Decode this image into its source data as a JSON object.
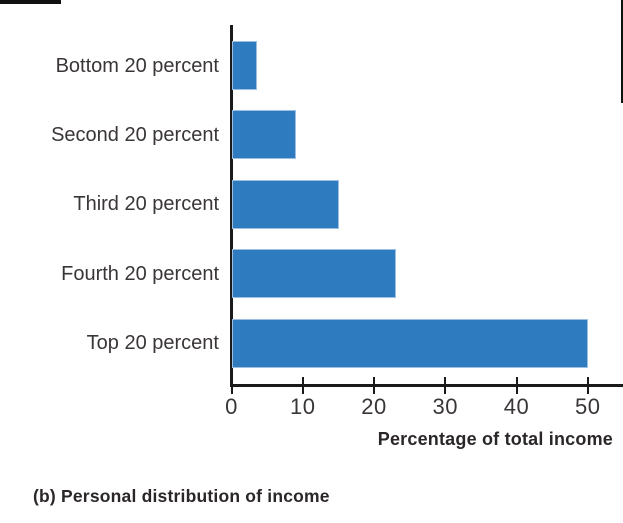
{
  "page": {
    "caption": "(b) Personal distribution of income"
  },
  "chart_data": {
    "type": "bar",
    "orientation": "horizontal",
    "title": "",
    "xlabel": "Percentage of total income",
    "ylabel": "",
    "categories": [
      "Bottom 20 percent",
      "Second 20 percent",
      "Third 20 percent",
      "Fourth 20 percent",
      "Top 20 percent"
    ],
    "values": [
      3.5,
      9,
      15,
      23,
      50
    ],
    "x_ticks": [
      0,
      10,
      20,
      30,
      40,
      50
    ],
    "xlim": [
      0,
      55
    ],
    "grid": false,
    "legend": false,
    "bar_color": "#2e7cbf",
    "axis_color": "#1a1a1a",
    "label_color": "#3a3637"
  }
}
